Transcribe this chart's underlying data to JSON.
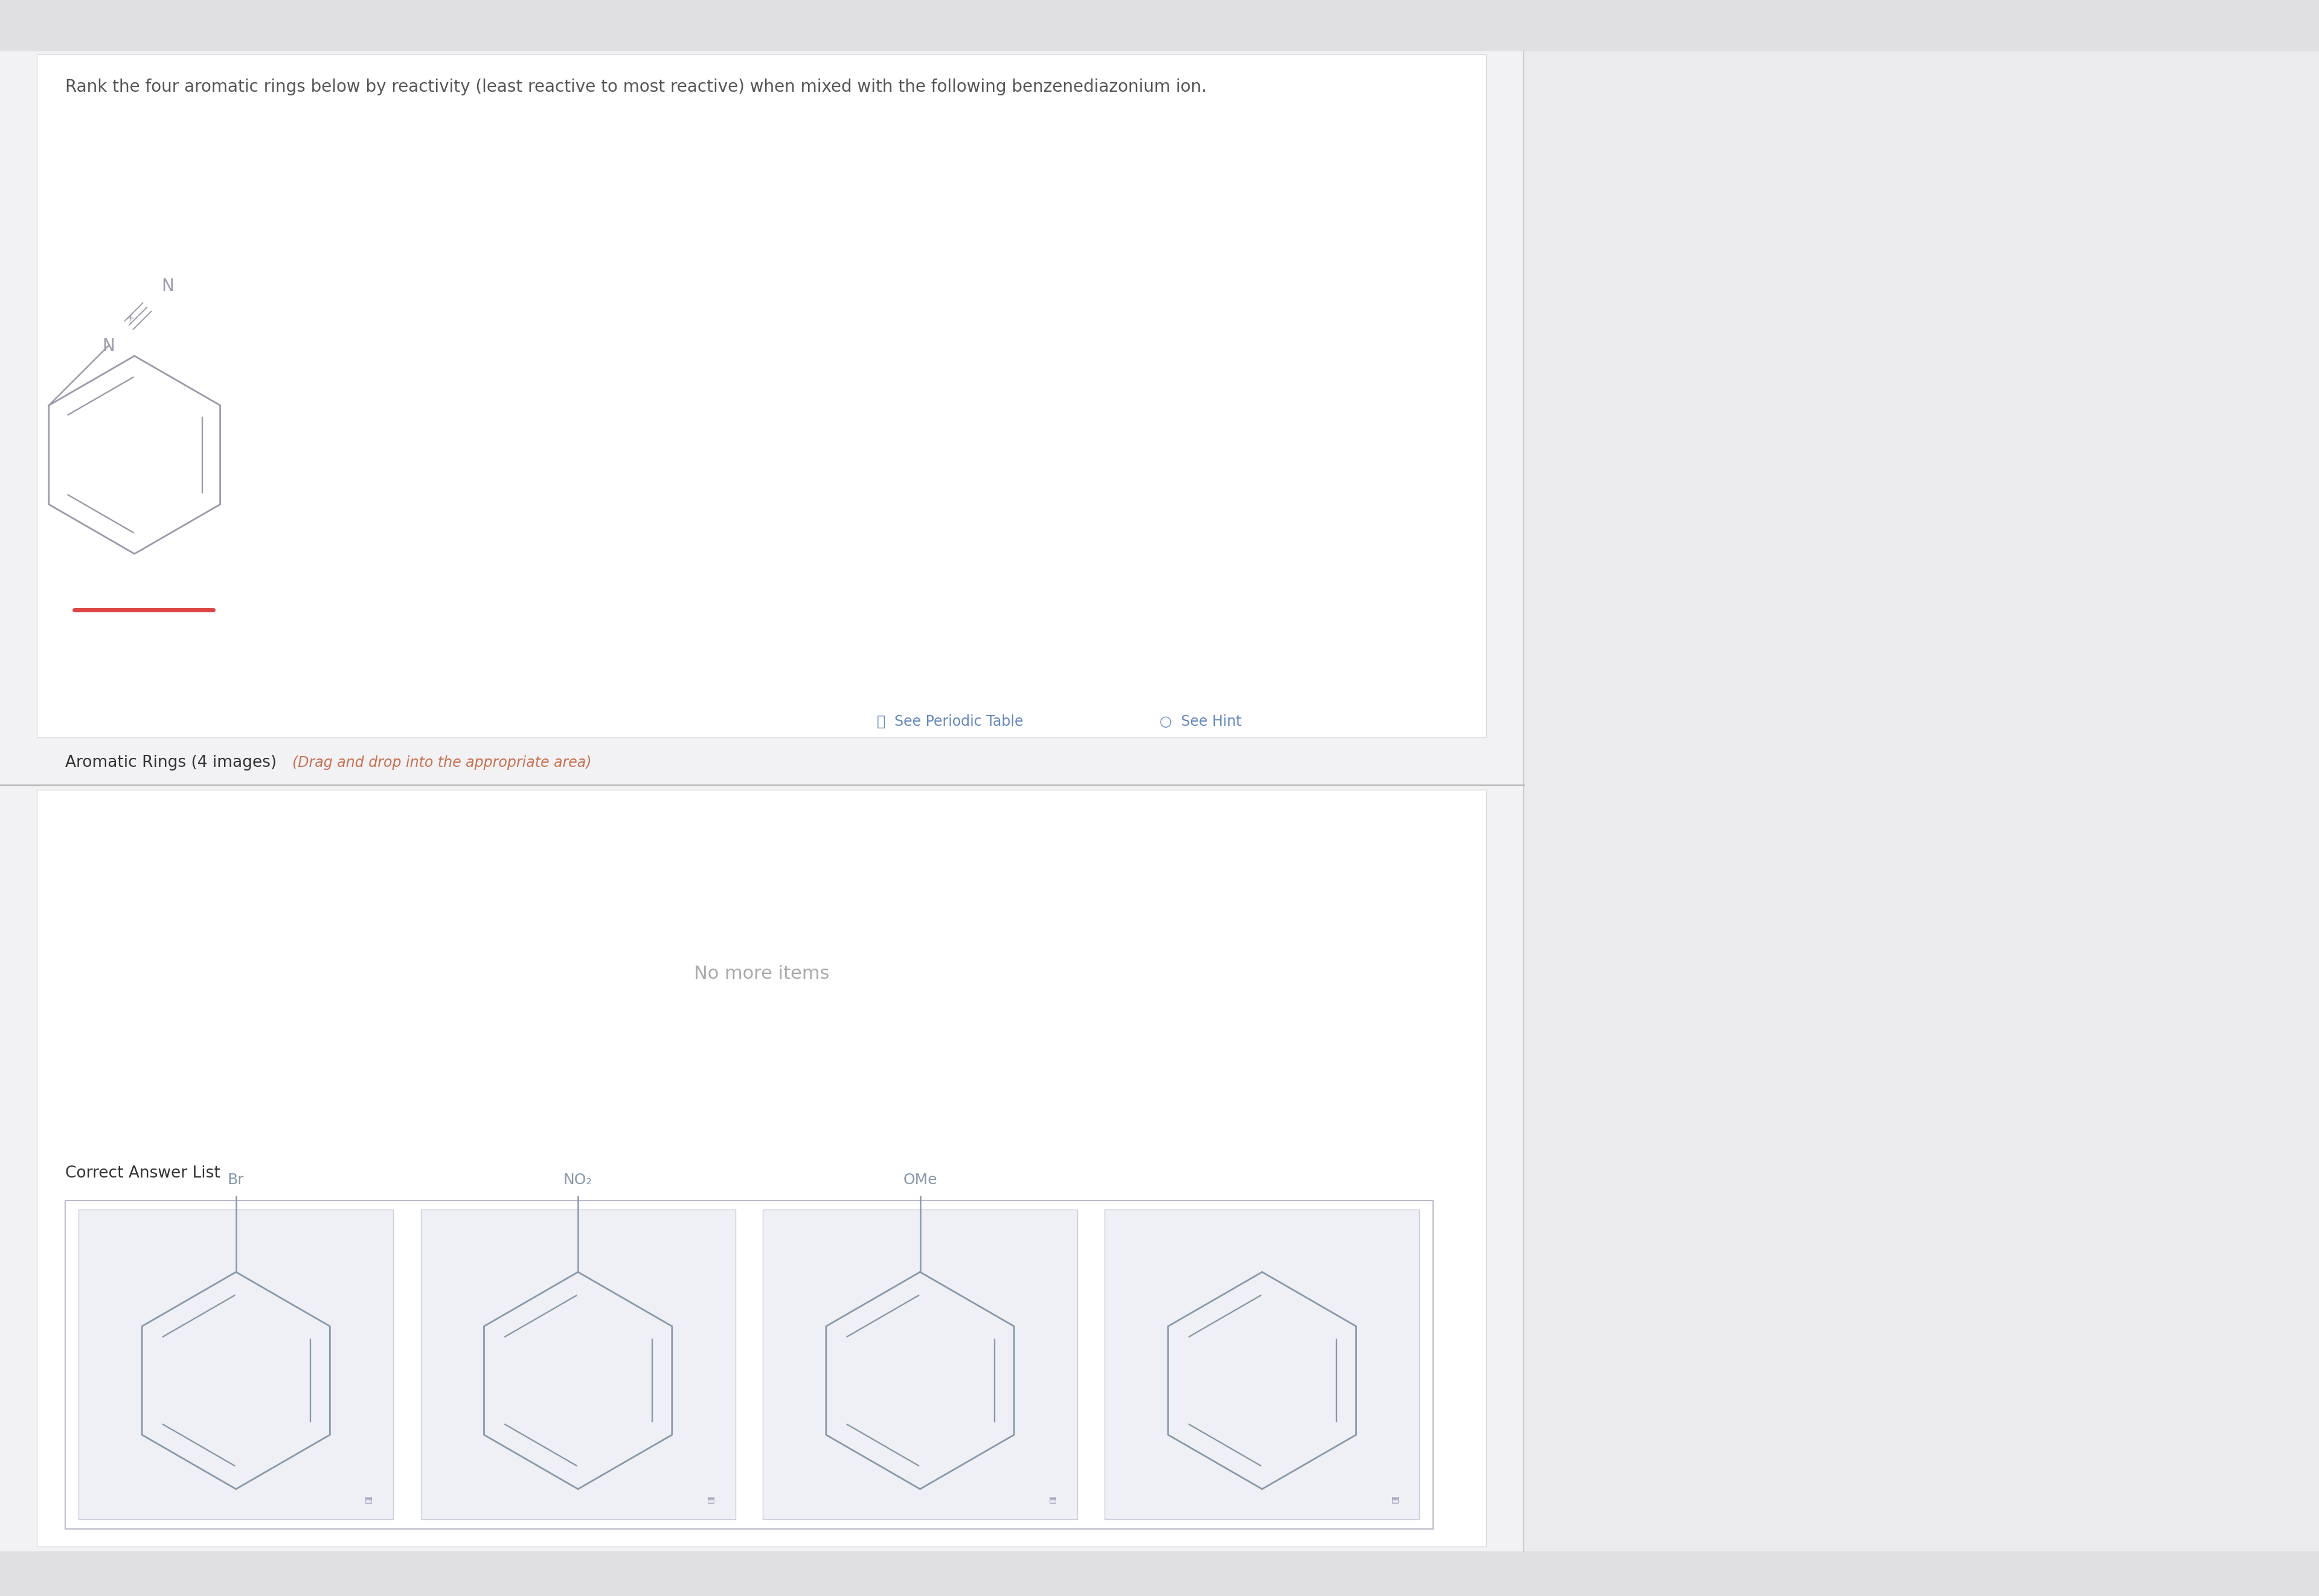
{
  "background_color": "#e8e8ea",
  "left_panel_color": "#f2f2f5",
  "right_panel_color": "#ebebed",
  "white": "#ffffff",
  "title_text": "Rank the four aromatic rings below by reactivity (least reactive to most reactive) when mixed with the following benzenediazonium ion.",
  "title_color": "#555555",
  "title_fontsize": 20,
  "aromatic_label": "Aromatic Rings (4 images)",
  "aromatic_label_color": "#333333",
  "aromatic_label_fontsize": 19,
  "drag_hint": "(Drag and drop into the appropriate area)",
  "drag_hint_color": "#c87050",
  "drag_hint_fontsize": 17,
  "no_more_items": "No more items",
  "no_more_items_color": "#aaaaaa",
  "no_more_items_fontsize": 22,
  "correct_answer_label": "Correct Answer List",
  "correct_answer_color": "#333333",
  "correct_answer_fontsize": 19,
  "see_periodic_table": "See Periodic Table",
  "see_hint": "See Hint",
  "tools_color": "#6688bb",
  "tools_fontsize": 17,
  "divider_color": "#bbbbbb",
  "substituents": [
    "Br",
    "NO₂",
    "OMe",
    ""
  ],
  "ring_color": "#8899aa",
  "ring_linewidth": 2.0,
  "diazo_color": "#999aaa",
  "red_line_color": "#dd4444",
  "panel_border_color": "#dddddd"
}
